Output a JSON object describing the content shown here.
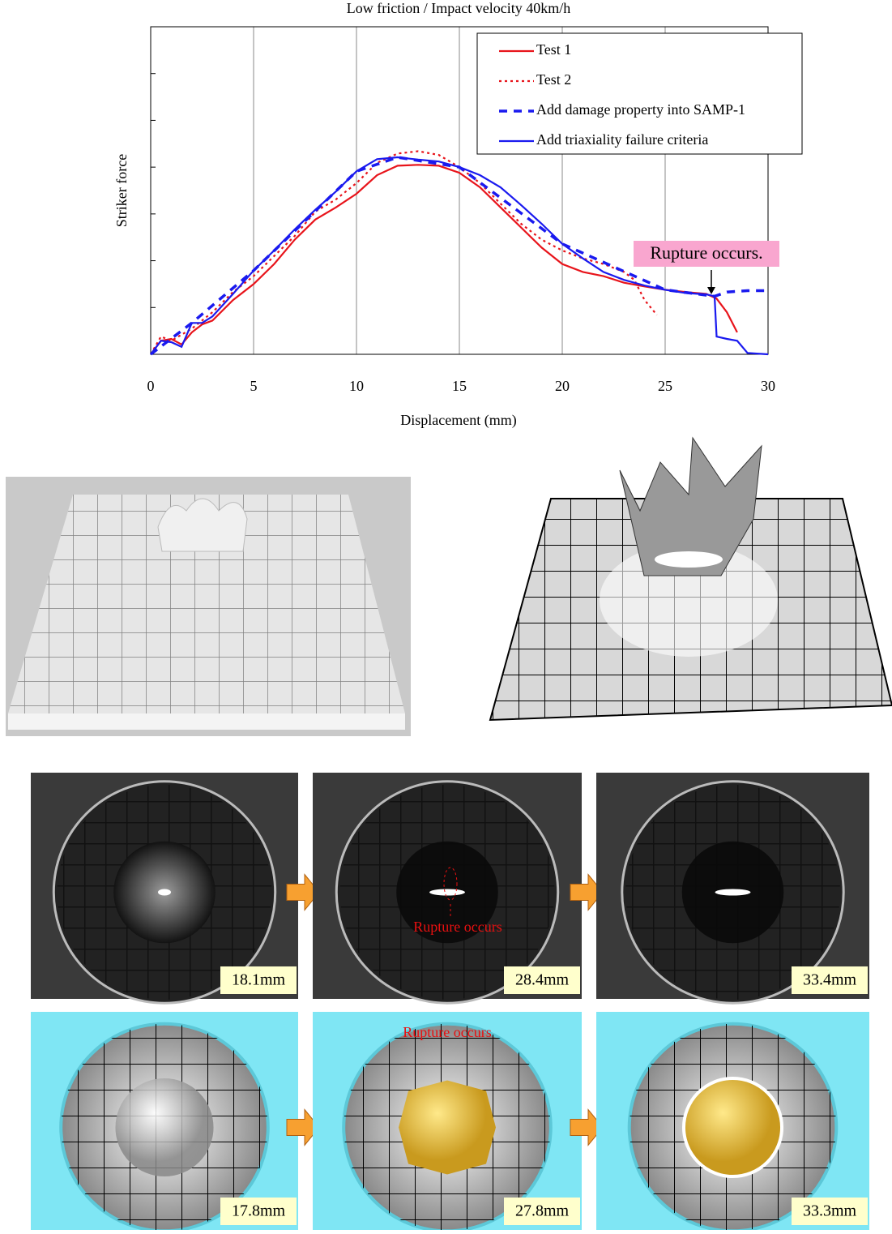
{
  "chart_data": {
    "type": "line",
    "title": "Low friction / Impact velocity 40km/h",
    "x_label": "Displacement (mm)",
    "y_label": "Striker force",
    "xlim": [
      0,
      30
    ],
    "xticks": [
      0,
      5,
      10,
      15,
      20,
      25,
      30
    ],
    "ylim": [
      0,
      7
    ],
    "yticks": [
      0,
      1,
      2,
      3,
      4,
      5,
      6,
      7
    ],
    "ytick_labels": false,
    "grid": true,
    "legend": "upper right",
    "annotation": "Rupture occurs.",
    "series": [
      {
        "name": "Test 1",
        "color": "#e8141b",
        "style": "solid",
        "x": [
          0,
          0.5,
          1,
          1.5,
          2,
          2.5,
          3,
          4,
          5,
          6,
          7,
          8,
          9,
          10,
          11,
          12,
          13,
          14,
          15,
          16,
          17,
          18,
          19,
          20,
          21,
          22,
          23,
          24,
          25,
          26,
          27,
          27.5,
          28,
          28.5
        ],
        "values": [
          0,
          0.29,
          0.33,
          0.21,
          0.47,
          0.64,
          0.72,
          1.16,
          1.5,
          1.93,
          2.45,
          2.88,
          3.14,
          3.43,
          3.83,
          4.03,
          4.05,
          4.03,
          3.88,
          3.57,
          3.14,
          2.71,
          2.28,
          1.93,
          1.76,
          1.67,
          1.53,
          1.45,
          1.38,
          1.33,
          1.29,
          1.19,
          0.9,
          0.47
        ]
      },
      {
        "name": "Test 2",
        "color": "#e8141b",
        "style": "dotted",
        "x": [
          0,
          0.5,
          1,
          2,
          3,
          4,
          5,
          6,
          7,
          8,
          9,
          10,
          11,
          12,
          13,
          14,
          15,
          16,
          17,
          18,
          19,
          20,
          21,
          22,
          23,
          23.5,
          24,
          24.6
        ],
        "values": [
          0,
          0.38,
          0.29,
          0.55,
          0.9,
          1.33,
          1.67,
          2.1,
          2.53,
          3.05,
          3.31,
          3.66,
          4.09,
          4.29,
          4.34,
          4.26,
          4.0,
          3.66,
          3.22,
          2.79,
          2.45,
          2.22,
          2.05,
          1.93,
          1.76,
          1.59,
          1.16,
          0.84
        ]
      },
      {
        "name": "Add damage property into SAMP-1",
        "color": "#1a1aef",
        "style": "dashed",
        "x": [
          0,
          2,
          5,
          10,
          12,
          15,
          20,
          25,
          27.4,
          28,
          29,
          30
        ],
        "values": [
          0,
          0.67,
          1.79,
          3.91,
          4.21,
          4.0,
          2.36,
          1.38,
          1.24,
          1.33,
          1.36,
          1.36
        ]
      },
      {
        "name": "Add triaxiality failure criteria",
        "color": "#1a1aef",
        "style": "solid",
        "x": [
          0,
          0.5,
          1,
          1.5,
          2,
          2.5,
          3,
          4,
          5,
          6,
          7,
          8,
          9,
          10,
          11,
          12,
          13,
          14,
          15,
          16,
          17,
          18,
          19,
          20,
          21,
          22,
          23,
          24,
          25,
          26,
          27,
          27.4,
          27.5,
          28,
          28.5,
          29,
          30
        ],
        "values": [
          0,
          0.29,
          0.26,
          0.16,
          0.67,
          0.67,
          0.81,
          1.29,
          1.79,
          2.22,
          2.67,
          3.09,
          3.48,
          3.91,
          4.17,
          4.21,
          4.16,
          4.12,
          4.0,
          3.83,
          3.57,
          3.19,
          2.79,
          2.36,
          2.05,
          1.76,
          1.59,
          1.47,
          1.38,
          1.31,
          1.28,
          1.24,
          0.38,
          0.33,
          0.29,
          0.03,
          0
        ]
      }
    ]
  },
  "experiment": {
    "annotation": "Rupture occurs",
    "labels": [
      "18.1mm",
      "28.4mm",
      "33.4mm"
    ]
  },
  "simulation": {
    "annotation": "Rupture occurs",
    "labels": [
      "17.8mm",
      "27.8mm",
      "33.3mm"
    ]
  }
}
